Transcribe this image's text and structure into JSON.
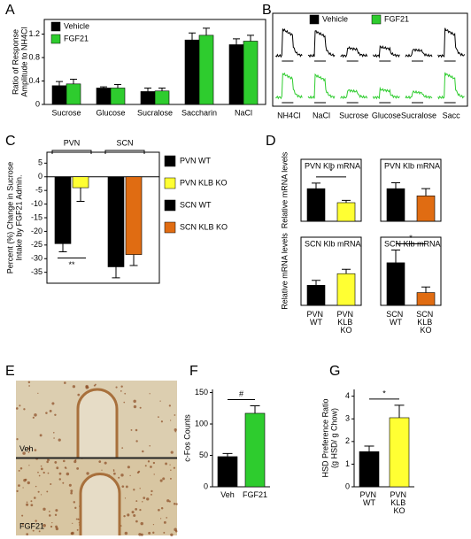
{
  "chart_data": [
    {
      "type": "bar",
      "panel": "A",
      "y_label": [
        "Ratio of Response",
        "Amplitude to NH4Cl"
      ],
      "categories": [
        "Sucrose",
        "Glucose",
        "Sucralose",
        "Saccharin",
        "NaCl"
      ],
      "series": [
        {
          "name": "Vehicle",
          "color": "#000000",
          "values": [
            0.32,
            0.28,
            0.22,
            1.1,
            1.02
          ],
          "errors": [
            0.07,
            0.02,
            0.06,
            0.12,
            0.1
          ]
        },
        {
          "name": "FGF21",
          "color": "#2ecc2e",
          "values": [
            0.35,
            0.28,
            0.23,
            1.18,
            1.08
          ],
          "errors": [
            0.08,
            0.06,
            0.05,
            0.12,
            0.1
          ]
        }
      ],
      "ylim": [
        0,
        1.45
      ],
      "yticks": [
        0,
        0.4,
        0.8,
        1.2
      ],
      "legend": "upper left"
    },
    {
      "type": "traces",
      "panel": "B",
      "categories": [
        "NH4Cl",
        "NaCl",
        "Sucrose",
        "Glucose",
        "Sucralose",
        "Sacc"
      ],
      "series": [
        {
          "name": "Vehicle",
          "color": "#000000"
        },
        {
          "name": "FGF21",
          "color": "#2ecc2e"
        }
      ],
      "legend": "upper center"
    },
    {
      "type": "bar",
      "panel": "C",
      "y_label": [
        "Percent (%) Change in Sucrose",
        "Intake by FGF21 Admin."
      ],
      "groups": [
        "PVN",
        "SCN"
      ],
      "categories": [
        "PVN WT",
        "PVN KLB KO",
        "SCN WT",
        "SCN KLB KO"
      ],
      "colors": [
        "#000000",
        "#ffff33",
        "#000000",
        "#e06c12"
      ],
      "values": [
        -24.5,
        -4,
        -33,
        -28.5
      ],
      "errors": [
        3,
        5,
        4,
        4
      ],
      "ylim": [
        -39,
        9
      ],
      "yticks": [
        5,
        0,
        -5,
        -10,
        -15,
        -20,
        -25,
        -30,
        -35
      ],
      "significance": "**",
      "legend": "right"
    },
    {
      "type": "bar",
      "panel": "D",
      "title": "PVN Klb mRNA",
      "y_label": [
        "Relative mRNA levels"
      ],
      "colors": [
        "#000000",
        "#ffff33"
      ],
      "values": [
        1,
        0.57
      ],
      "errors": [
        0.17,
        0.07
      ],
      "ylim": [
        0,
        1.9
      ],
      "significance": "*"
    },
    {
      "type": "bar",
      "title": "PVN Klb mRNA",
      "colors": [
        "#000000",
        "#e06c12"
      ],
      "values": [
        1,
        0.78
      ],
      "errors": [
        0.18,
        0.22
      ],
      "ylim": [
        0,
        1.9
      ]
    },
    {
      "type": "bar",
      "title": "SCN Klb mRNA",
      "y_label": [
        "Relative mRNA levels"
      ],
      "categories": [
        "PVN WT",
        "PVN KLB KO"
      ],
      "colors": [
        "#000000",
        "#ffff33"
      ],
      "values": [
        1,
        1.58
      ],
      "errors": [
        0.25,
        0.22
      ],
      "ylim": [
        0,
        3.4
      ]
    },
    {
      "type": "bar",
      "title": "SCN Klb mRNA",
      "categories": [
        "SCN WT",
        "SCN KLB KO"
      ],
      "colors": [
        "#000000",
        "#e06c12"
      ],
      "values": [
        1,
        0.3
      ],
      "errors": [
        0.3,
        0.13
      ],
      "ylim": [
        0,
        1.6
      ],
      "significance": "*"
    },
    {
      "type": "image",
      "panel": "E",
      "labels": [
        "Veh",
        "FGF21"
      ]
    },
    {
      "type": "bar",
      "panel": "F",
      "y_label": [
        "c-Fos Counts"
      ],
      "categories": [
        "Veh",
        "FGF21"
      ],
      "colors": [
        "#000000",
        "#2ecc2e"
      ],
      "values": [
        48,
        117
      ],
      "errors": [
        5,
        12
      ],
      "ylim": [
        0,
        155
      ],
      "yticks": [
        0,
        50,
        100,
        150
      ],
      "significance": "#"
    },
    {
      "type": "bar",
      "panel": "G",
      "y_label": [
        "HSD Preference Ratio",
        "(g HSD/ g Chow)"
      ],
      "categories": [
        "PVN WT",
        "PVN KLB KO"
      ],
      "colors": [
        "#000000",
        "#ffff33"
      ],
      "values": [
        1.55,
        3.05
      ],
      "errors": [
        0.25,
        0.55
      ],
      "ylim": [
        0,
        4.3
      ],
      "yticks": [
        0,
        1,
        2,
        3,
        4
      ],
      "significance": "*"
    }
  ]
}
